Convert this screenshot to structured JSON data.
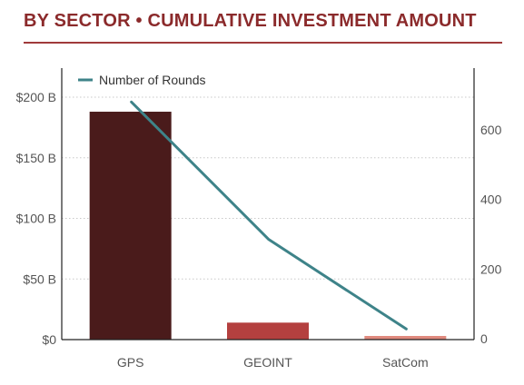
{
  "header": {
    "title": "BY SECTOR  •  CUMULATIVE INVESTMENT AMOUNT"
  },
  "chart_data": {
    "type": "bar",
    "categories": [
      "GPS",
      "GEOINT",
      "SatCom"
    ],
    "series": [
      {
        "values": [
          188,
          14,
          3
        ],
        "axis": "left",
        "mark": "bar"
      },
      {
        "name": "Number of Rounds",
        "values": [
          680,
          285,
          28
        ],
        "axis": "right",
        "mark": "line"
      }
    ],
    "bar_colors": [
      "#4a1b1b",
      "#b4403f",
      "#e08a7e"
    ],
    "line_color": "#3e8389",
    "y_left": {
      "ticks": [
        "$0",
        "$50 B",
        "$100 B",
        "$150 B",
        "$200 B"
      ],
      "tick_values": [
        0,
        50,
        100,
        150,
        200
      ],
      "ylim": [
        0,
        200
      ],
      "unit": "B"
    },
    "y_right": {
      "ticks": [
        "0",
        "200",
        "400",
        "600"
      ],
      "tick_values": [
        0,
        200,
        400,
        600
      ],
      "ylim": [
        0,
        600
      ]
    },
    "grid": true,
    "legend_position": "top-left"
  }
}
